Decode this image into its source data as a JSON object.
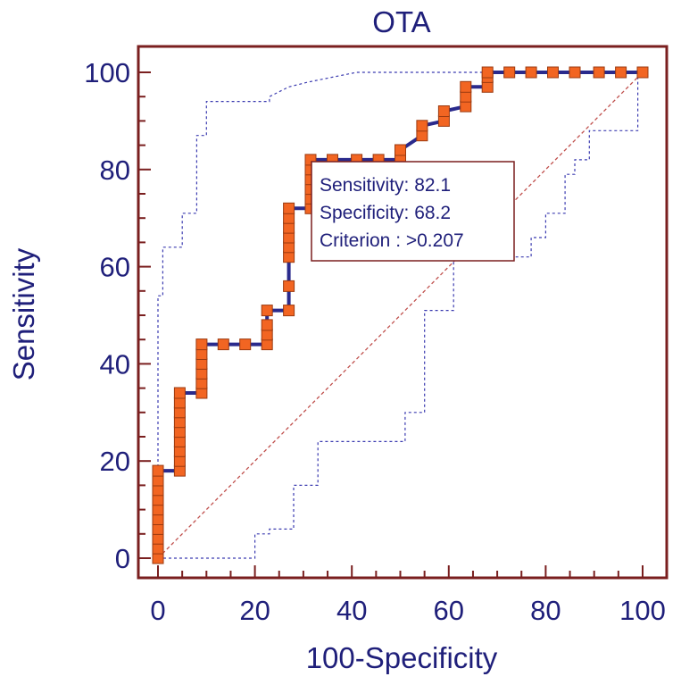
{
  "chart_data": {
    "type": "line",
    "title": "OTA",
    "xlabel": "100-Specificity",
    "ylabel": "Sensitivity",
    "xlim": [
      0,
      100
    ],
    "ylim": [
      0,
      100
    ],
    "xticks": [
      0,
      20,
      40,
      60,
      80,
      100
    ],
    "yticks": [
      0,
      20,
      40,
      60,
      80,
      100
    ],
    "grid": false,
    "series": [
      {
        "role": "roc",
        "color": "#2a2a8c",
        "marker_color": "#f26522",
        "points": [
          [
            0,
            0
          ],
          [
            0,
            2
          ],
          [
            0,
            4
          ],
          [
            0,
            6
          ],
          [
            0,
            8
          ],
          [
            0,
            10
          ],
          [
            0,
            12
          ],
          [
            0,
            14
          ],
          [
            0,
            16
          ],
          [
            0,
            18
          ],
          [
            4.5,
            18
          ],
          [
            4.5,
            20
          ],
          [
            4.5,
            22
          ],
          [
            4.5,
            24
          ],
          [
            4.5,
            26
          ],
          [
            4.5,
            28
          ],
          [
            4.5,
            30
          ],
          [
            4.5,
            32
          ],
          [
            4.5,
            34
          ],
          [
            9,
            34
          ],
          [
            9,
            36
          ],
          [
            9,
            38
          ],
          [
            9,
            40
          ],
          [
            9,
            42
          ],
          [
            9,
            44
          ],
          [
            13.5,
            44
          ],
          [
            18,
            44
          ],
          [
            22.5,
            44
          ],
          [
            22.5,
            46
          ],
          [
            22.5,
            48
          ],
          [
            22.5,
            51
          ],
          [
            27,
            51
          ],
          [
            27,
            56
          ],
          [
            27,
            62
          ],
          [
            27,
            64
          ],
          [
            27,
            66
          ],
          [
            27,
            68
          ],
          [
            27,
            70
          ],
          [
            27,
            72
          ],
          [
            31.5,
            72
          ],
          [
            31.5,
            74
          ],
          [
            31.5,
            76
          ],
          [
            31.5,
            78
          ],
          [
            31.5,
            80
          ],
          [
            31.5,
            82
          ],
          [
            36,
            82
          ],
          [
            41,
            82
          ],
          [
            45.5,
            82
          ],
          [
            50,
            82
          ],
          [
            50,
            84
          ],
          [
            54.5,
            87
          ],
          [
            54.5,
            89
          ],
          [
            59,
            90
          ],
          [
            59,
            92
          ],
          [
            63.5,
            93
          ],
          [
            63.5,
            95
          ],
          [
            63.5,
            97
          ],
          [
            68,
            97
          ],
          [
            68,
            99
          ],
          [
            68,
            100
          ],
          [
            72.5,
            100
          ],
          [
            77,
            100
          ],
          [
            81.5,
            100
          ],
          [
            86,
            100
          ],
          [
            91,
            100
          ],
          [
            95.5,
            100
          ],
          [
            100,
            100
          ]
        ]
      },
      {
        "role": "upper-confidence-bound",
        "color": "#3b3bb0",
        "points": [
          [
            0,
            0
          ],
          [
            0,
            54
          ],
          [
            1,
            54
          ],
          [
            1,
            64
          ],
          [
            5,
            64
          ],
          [
            5,
            71
          ],
          [
            8,
            71
          ],
          [
            8,
            87
          ],
          [
            10,
            87
          ],
          [
            10,
            94
          ],
          [
            23,
            94
          ],
          [
            23,
            95
          ],
          [
            27,
            97
          ],
          [
            31,
            98
          ],
          [
            36,
            99
          ],
          [
            41,
            100
          ],
          [
            100,
            100
          ]
        ]
      },
      {
        "role": "lower-confidence-bound",
        "color": "#3b3bb0",
        "points": [
          [
            0,
            0
          ],
          [
            20,
            0
          ],
          [
            20,
            5
          ],
          [
            23,
            5
          ],
          [
            23,
            6
          ],
          [
            28,
            6
          ],
          [
            28,
            15
          ],
          [
            33,
            15
          ],
          [
            33,
            24
          ],
          [
            51,
            24
          ],
          [
            51,
            30
          ],
          [
            55,
            30
          ],
          [
            55,
            51
          ],
          [
            61,
            51
          ],
          [
            61,
            62
          ],
          [
            77,
            62
          ],
          [
            77,
            66
          ],
          [
            80,
            66
          ],
          [
            80,
            71
          ],
          [
            84,
            71
          ],
          [
            84,
            79
          ],
          [
            86,
            79
          ],
          [
            86,
            82
          ],
          [
            89,
            82
          ],
          [
            89,
            88
          ],
          [
            99,
            88
          ],
          [
            99,
            100
          ]
        ]
      },
      {
        "role": "reference-diagonal",
        "color": "#c0504d",
        "points": [
          [
            0,
            0
          ],
          [
            100,
            100
          ]
        ]
      }
    ],
    "annotation": {
      "lines": [
        "Sensitivity: 82.1",
        "Specificity: 68.2",
        "Criterion : >0.207"
      ],
      "anchor": [
        32,
        82
      ]
    }
  }
}
